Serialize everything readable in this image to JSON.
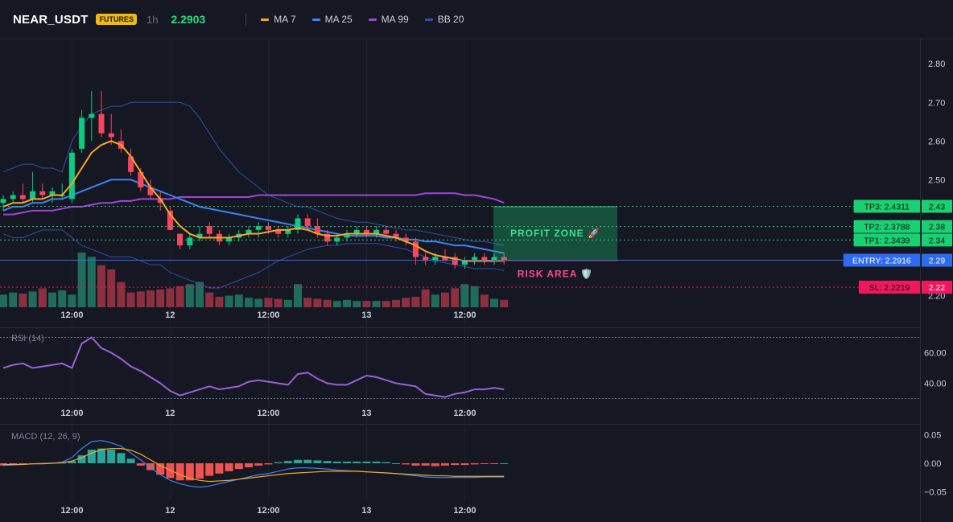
{
  "header": {
    "symbol": "NEAR_USDT",
    "badge": "FUTURES",
    "timeframe": "1h",
    "price": "2.2903",
    "legend": [
      {
        "label": "MA 7",
        "color": "#f5a623"
      },
      {
        "label": "MA 25",
        "color": "#3b82f6"
      },
      {
        "label": "MA 99",
        "color": "#a044d8"
      },
      {
        "label": "BB 20",
        "color": "#2f4fa8"
      }
    ]
  },
  "chart_data": [
    {
      "type": "candlestick",
      "title": "",
      "ylim": [
        2.17,
        2.84
      ],
      "y_ticks": [
        "2.80",
        "2.70",
        "2.60",
        "2.50",
        "2.20"
      ],
      "x_ticks": [
        {
          "label": "12:00",
          "i": 7
        },
        {
          "label": "12",
          "i": 17
        },
        {
          "label": "12:00",
          "i": 27
        },
        {
          "label": "13",
          "i": 37
        },
        {
          "label": "12:00",
          "i": 47
        }
      ],
      "candles": [
        {
          "o": 2.44,
          "h": 2.46,
          "l": 2.42,
          "c": 2.45
        },
        {
          "o": 2.45,
          "h": 2.47,
          "l": 2.44,
          "c": 2.46
        },
        {
          "o": 2.46,
          "h": 2.49,
          "l": 2.44,
          "c": 2.45
        },
        {
          "o": 2.45,
          "h": 2.52,
          "l": 2.44,
          "c": 2.47
        },
        {
          "o": 2.47,
          "h": 2.49,
          "l": 2.45,
          "c": 2.46
        },
        {
          "o": 2.46,
          "h": 2.48,
          "l": 2.44,
          "c": 2.47
        },
        {
          "o": 2.46,
          "h": 2.49,
          "l": 2.45,
          "c": 2.46
        },
        {
          "o": 2.45,
          "h": 2.58,
          "l": 2.44,
          "c": 2.57
        },
        {
          "o": 2.58,
          "h": 2.68,
          "l": 2.57,
          "c": 2.66
        },
        {
          "o": 2.66,
          "h": 2.73,
          "l": 2.6,
          "c": 2.67
        },
        {
          "o": 2.67,
          "h": 2.73,
          "l": 2.61,
          "c": 2.62
        },
        {
          "o": 2.62,
          "h": 2.67,
          "l": 2.59,
          "c": 2.61
        },
        {
          "o": 2.6,
          "h": 2.63,
          "l": 2.57,
          "c": 2.58
        },
        {
          "o": 2.56,
          "h": 2.58,
          "l": 2.51,
          "c": 2.52
        },
        {
          "o": 2.52,
          "h": 2.53,
          "l": 2.47,
          "c": 2.48
        },
        {
          "o": 2.48,
          "h": 2.5,
          "l": 2.45,
          "c": 2.46
        },
        {
          "o": 2.45,
          "h": 2.47,
          "l": 2.42,
          "c": 2.44
        },
        {
          "o": 2.42,
          "h": 2.43,
          "l": 2.37,
          "c": 2.37
        },
        {
          "o": 2.36,
          "h": 2.36,
          "l": 2.32,
          "c": 2.33
        },
        {
          "o": 2.33,
          "h": 2.36,
          "l": 2.32,
          "c": 2.35
        },
        {
          "o": 2.35,
          "h": 2.38,
          "l": 2.34,
          "c": 2.36
        },
        {
          "o": 2.38,
          "h": 2.39,
          "l": 2.35,
          "c": 2.36
        },
        {
          "o": 2.36,
          "h": 2.37,
          "l": 2.33,
          "c": 2.34
        },
        {
          "o": 2.34,
          "h": 2.36,
          "l": 2.33,
          "c": 2.35
        },
        {
          "o": 2.35,
          "h": 2.37,
          "l": 2.34,
          "c": 2.36
        },
        {
          "o": 2.36,
          "h": 2.38,
          "l": 2.35,
          "c": 2.37
        },
        {
          "o": 2.37,
          "h": 2.39,
          "l": 2.35,
          "c": 2.38
        },
        {
          "o": 2.38,
          "h": 2.39,
          "l": 2.36,
          "c": 2.37
        },
        {
          "o": 2.37,
          "h": 2.38,
          "l": 2.35,
          "c": 2.36
        },
        {
          "o": 2.36,
          "h": 2.38,
          "l": 2.35,
          "c": 2.37
        },
        {
          "o": 2.37,
          "h": 2.41,
          "l": 2.36,
          "c": 2.4
        },
        {
          "o": 2.4,
          "h": 2.41,
          "l": 2.37,
          "c": 2.38
        },
        {
          "o": 2.38,
          "h": 2.4,
          "l": 2.35,
          "c": 2.36
        },
        {
          "o": 2.36,
          "h": 2.37,
          "l": 2.33,
          "c": 2.34
        },
        {
          "o": 2.34,
          "h": 2.36,
          "l": 2.33,
          "c": 2.35
        },
        {
          "o": 2.35,
          "h": 2.37,
          "l": 2.34,
          "c": 2.36
        },
        {
          "o": 2.36,
          "h": 2.38,
          "l": 2.35,
          "c": 2.37
        },
        {
          "o": 2.37,
          "h": 2.38,
          "l": 2.35,
          "c": 2.36
        },
        {
          "o": 2.36,
          "h": 2.38,
          "l": 2.35,
          "c": 2.37
        },
        {
          "o": 2.37,
          "h": 2.38,
          "l": 2.35,
          "c": 2.36
        },
        {
          "o": 2.36,
          "h": 2.37,
          "l": 2.34,
          "c": 2.35
        },
        {
          "o": 2.35,
          "h": 2.36,
          "l": 2.33,
          "c": 2.34
        },
        {
          "o": 2.34,
          "h": 2.35,
          "l": 2.28,
          "c": 2.3
        },
        {
          "o": 2.3,
          "h": 2.31,
          "l": 2.28,
          "c": 2.29
        },
        {
          "o": 2.29,
          "h": 2.31,
          "l": 2.28,
          "c": 2.3
        },
        {
          "o": 2.3,
          "h": 2.32,
          "l": 2.29,
          "c": 2.29
        },
        {
          "o": 2.3,
          "h": 2.31,
          "l": 2.27,
          "c": 2.28
        },
        {
          "o": 2.28,
          "h": 2.3,
          "l": 2.27,
          "c": 2.29
        },
        {
          "o": 2.29,
          "h": 2.31,
          "l": 2.28,
          "c": 2.3
        },
        {
          "o": 2.3,
          "h": 2.31,
          "l": 2.28,
          "c": 2.29
        },
        {
          "o": 2.29,
          "h": 2.31,
          "l": 2.28,
          "c": 2.3
        },
        {
          "o": 2.3,
          "h": 2.31,
          "l": 2.28,
          "c": 2.29
        }
      ],
      "volume": [
        12,
        14,
        13,
        15,
        18,
        14,
        16,
        12,
        52,
        48,
        40,
        36,
        24,
        14,
        15,
        16,
        17,
        18,
        20,
        22,
        24,
        14,
        10,
        11,
        12,
        9,
        8,
        9,
        8,
        7,
        22,
        9,
        8,
        7,
        6,
        7,
        6,
        6,
        6,
        6,
        7,
        9,
        10,
        17,
        12,
        14,
        18,
        22,
        20,
        12,
        8,
        7
      ],
      "ma7": [
        2.43,
        2.44,
        2.44,
        2.45,
        2.45,
        2.46,
        2.46,
        2.49,
        2.53,
        2.57,
        2.59,
        2.6,
        2.59,
        2.56,
        2.52,
        2.48,
        2.45,
        2.41,
        2.38,
        2.36,
        2.35,
        2.35,
        2.35,
        2.35,
        2.355,
        2.36,
        2.36,
        2.365,
        2.37,
        2.37,
        2.375,
        2.37,
        2.36,
        2.355,
        2.355,
        2.36,
        2.36,
        2.36,
        2.36,
        2.355,
        2.35,
        2.34,
        2.33,
        2.315,
        2.305,
        2.3,
        2.295,
        2.29,
        2.29,
        2.29,
        2.29,
        2.29
      ],
      "ma25": [
        2.42,
        2.43,
        2.43,
        2.44,
        2.44,
        2.45,
        2.45,
        2.46,
        2.47,
        2.48,
        2.49,
        2.5,
        2.5,
        2.5,
        2.49,
        2.48,
        2.47,
        2.46,
        2.45,
        2.44,
        2.43,
        2.425,
        2.42,
        2.415,
        2.41,
        2.405,
        2.4,
        2.395,
        2.39,
        2.385,
        2.38,
        2.375,
        2.37,
        2.365,
        2.36,
        2.355,
        2.355,
        2.355,
        2.355,
        2.35,
        2.35,
        2.345,
        2.345,
        2.34,
        2.34,
        2.335,
        2.33,
        2.33,
        2.325,
        2.32,
        2.315,
        2.31
      ],
      "ma99": [
        2.41,
        2.41,
        2.415,
        2.42,
        2.42,
        2.42,
        2.425,
        2.43,
        2.43,
        2.435,
        2.44,
        2.44,
        2.445,
        2.445,
        2.45,
        2.45,
        2.45,
        2.45,
        2.455,
        2.455,
        2.455,
        2.455,
        2.455,
        2.455,
        2.455,
        2.455,
        2.46,
        2.46,
        2.46,
        2.46,
        2.46,
        2.46,
        2.46,
        2.46,
        2.46,
        2.46,
        2.46,
        2.46,
        2.46,
        2.46,
        2.46,
        2.46,
        2.46,
        2.465,
        2.465,
        2.465,
        2.465,
        2.46,
        2.46,
        2.455,
        2.45,
        2.44
      ],
      "bb_upper": [
        2.52,
        2.53,
        2.54,
        2.54,
        2.53,
        2.53,
        2.52,
        2.6,
        2.64,
        2.67,
        2.68,
        2.69,
        2.69,
        2.7,
        2.7,
        2.7,
        2.7,
        2.7,
        2.7,
        2.69,
        2.66,
        2.62,
        2.58,
        2.55,
        2.52,
        2.5,
        2.48,
        2.46,
        2.45,
        2.44,
        2.43,
        2.43,
        2.42,
        2.41,
        2.4,
        2.395,
        2.39,
        2.39,
        2.385,
        2.38,
        2.375,
        2.37,
        2.37,
        2.365,
        2.36,
        2.355,
        2.35,
        2.345,
        2.34,
        2.34,
        2.335,
        2.33
      ],
      "bb_lower": [
        2.36,
        2.35,
        2.35,
        2.36,
        2.37,
        2.37,
        2.37,
        2.35,
        2.33,
        2.32,
        2.31,
        2.3,
        2.3,
        2.3,
        2.29,
        2.28,
        2.28,
        2.26,
        2.25,
        2.24,
        2.23,
        2.22,
        2.22,
        2.23,
        2.24,
        2.25,
        2.26,
        2.275,
        2.29,
        2.3,
        2.31,
        2.32,
        2.325,
        2.33,
        2.33,
        2.335,
        2.335,
        2.335,
        2.335,
        2.33,
        2.325,
        2.32,
        2.31,
        2.3,
        2.29,
        2.285,
        2.28,
        2.275,
        2.27,
        2.27,
        2.27,
        2.265
      ]
    },
    {
      "type": "line",
      "title": "RSI (14)",
      "ylim": [
        25,
        75
      ],
      "y_ticks": [
        "60.00",
        "40.00"
      ],
      "levels": [
        70,
        30
      ],
      "values": [
        50,
        52,
        53,
        50,
        51,
        52,
        53,
        50,
        66,
        70,
        63,
        60,
        56,
        51,
        48,
        44,
        40,
        35,
        32,
        34,
        36,
        38,
        36,
        37,
        38,
        41,
        42,
        41,
        40,
        39,
        46,
        47,
        43,
        40,
        39,
        39,
        42,
        45,
        44,
        42,
        40,
        39,
        38,
        33,
        32,
        31,
        33,
        34,
        36,
        36,
        37,
        36
      ]
    },
    {
      "type": "bar",
      "title": "MACD (12, 26, 9)",
      "ylim": [
        -0.065,
        0.065
      ],
      "y_ticks": [
        "0.05",
        "0.00",
        "−0.05"
      ],
      "hist": [
        -0.004,
        -0.003,
        -0.002,
        -0.001,
        0,
        0.001,
        0.001,
        0.004,
        0.014,
        0.024,
        0.026,
        0.024,
        0.018,
        0.008,
        -0.004,
        -0.012,
        -0.02,
        -0.026,
        -0.03,
        -0.03,
        -0.027,
        -0.022,
        -0.018,
        -0.014,
        -0.01,
        -0.007,
        -0.004,
        -0.002,
        0.002,
        0.004,
        0.006,
        0.006,
        0.005,
        0.004,
        0.003,
        0.003,
        0.003,
        0.003,
        0.003,
        0.002,
        0,
        -0.002,
        -0.004,
        -0.004,
        -0.005,
        -0.004,
        -0.003,
        -0.003,
        -0.002,
        -0.001,
        -0.001,
        0
      ],
      "macd": [
        -0.004,
        -0.003,
        -0.002,
        -0.001,
        0,
        0,
        0.002,
        0.01,
        0.026,
        0.038,
        0.04,
        0.036,
        0.03,
        0.018,
        0.006,
        -0.008,
        -0.02,
        -0.03,
        -0.036,
        -0.04,
        -0.042,
        -0.04,
        -0.036,
        -0.032,
        -0.028,
        -0.024,
        -0.02,
        -0.018,
        -0.014,
        -0.01,
        -0.008,
        -0.008,
        -0.009,
        -0.01,
        -0.012,
        -0.013,
        -0.014,
        -0.015,
        -0.016,
        -0.017,
        -0.018,
        -0.02,
        -0.022,
        -0.024,
        -0.025,
        -0.025,
        -0.025,
        -0.025,
        -0.025,
        -0.024,
        -0.024,
        -0.024
      ],
      "signal": [
        -0.002,
        -0.002,
        -0.002,
        -0.001,
        -0.001,
        0,
        0.001,
        0.004,
        0.01,
        0.018,
        0.024,
        0.026,
        0.026,
        0.023,
        0.016,
        0.006,
        -0.004,
        -0.012,
        -0.02,
        -0.026,
        -0.03,
        -0.032,
        -0.031,
        -0.03,
        -0.028,
        -0.026,
        -0.024,
        -0.022,
        -0.02,
        -0.018,
        -0.017,
        -0.016,
        -0.015,
        -0.014,
        -0.014,
        -0.014,
        -0.014,
        -0.015,
        -0.016,
        -0.017,
        -0.018,
        -0.019,
        -0.02,
        -0.021,
        -0.022,
        -0.022,
        -0.023,
        -0.023,
        -0.023,
        -0.023,
        -0.023,
        -0.023
      ]
    }
  ],
  "levels": [
    {
      "label": "TP3: 2.4311",
      "axis": "2.43",
      "value": 2.4311,
      "color": "#19d173"
    },
    {
      "label": "TP2: 2.3788",
      "axis": "2.38",
      "value": 2.3788,
      "color": "#19d173"
    },
    {
      "label": "TP1: 2.3439",
      "axis": "2.34",
      "value": 2.3439,
      "color": "#19d173"
    },
    {
      "label": "ENTRY: 2.2916",
      "axis": "2.29",
      "value": 2.2916,
      "color": "#2f6bf0"
    },
    {
      "label": "SL: 2.2219",
      "axis": "2.22",
      "value": 2.2219,
      "color": "#f0175e"
    }
  ],
  "zones": {
    "profit": {
      "label": "PROFIT ZONE 🚀",
      "from": 2.2916,
      "to": 2.4311
    },
    "risk": {
      "label": "RISK AREA 🛡️",
      "from": 2.2219,
      "to": 2.2916
    }
  },
  "colors": {
    "up": "#0ecb81",
    "down": "#f6465d",
    "vol_up": "#1f6b5c",
    "vol_down": "#8c2f3e",
    "rsi": "#9a5fd6",
    "macd": "#3b82f6",
    "signal": "#f5a623",
    "hist_up": "#26a69a",
    "hist_down": "#ef5350",
    "profit": "#19d173",
    "risk": "#e0205f"
  }
}
